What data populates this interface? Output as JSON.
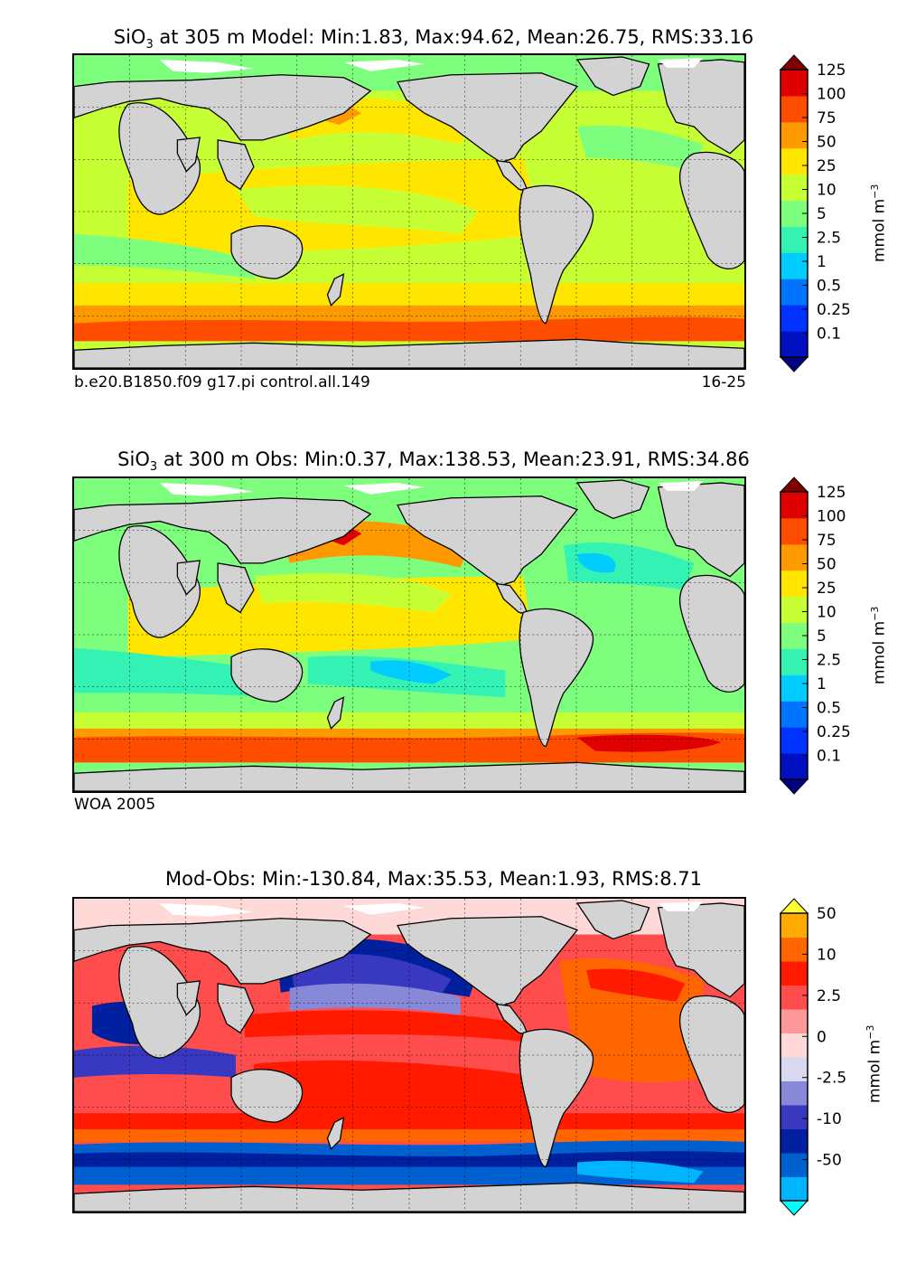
{
  "colors": {
    "land": "#d3d3d3",
    "ice": "#ffffff",
    "coast": "#000000",
    "grid": "#000000"
  },
  "chart_data": [
    {
      "type": "heatmap",
      "id": "model",
      "title_main": "SiO",
      "title_sub": "3",
      "title_rest": " at 305 m Model: Min:1.83, Max:94.62, Mean:26.75, RMS:33.16",
      "caption_left": "b.e20.B1850.f09 g17.pi control.all.149",
      "caption_right": "16-25",
      "colorbar_label": "mmol m",
      "colorbar_label_sup": "−3",
      "colorbar_ticks": [
        "0.1",
        "0.25",
        "0.5",
        "1",
        "2.5",
        "5",
        "10",
        "25",
        "50",
        "75",
        "100",
        "125"
      ],
      "colorbar_colors": [
        "#000080",
        "#0010c0",
        "#0033ff",
        "#0074ff",
        "#00ccff",
        "#33f2b3",
        "#7dff7d",
        "#c6ff33",
        "#ffe600",
        "#ff9900",
        "#ff4d00",
        "#e00000",
        "#800000"
      ],
      "extend": "both",
      "stats": {
        "depth_m": 305,
        "min": 1.83,
        "max": 94.62,
        "mean": 26.75,
        "rms": 33.16
      }
    },
    {
      "type": "heatmap",
      "id": "obs",
      "title_main": "SiO",
      "title_sub": "3",
      "title_rest": " at 300 m Obs: Min:0.37, Max:138.53, Mean:23.91, RMS:34.86",
      "caption_left": "WOA 2005",
      "caption_right": "",
      "colorbar_label": "mmol m",
      "colorbar_label_sup": "−3",
      "colorbar_ticks": [
        "0.1",
        "0.25",
        "0.5",
        "1",
        "2.5",
        "5",
        "10",
        "25",
        "50",
        "75",
        "100",
        "125"
      ],
      "colorbar_colors": [
        "#000080",
        "#0010c0",
        "#0033ff",
        "#0074ff",
        "#00ccff",
        "#33f2b3",
        "#7dff7d",
        "#c6ff33",
        "#ffe600",
        "#ff9900",
        "#ff4d00",
        "#e00000",
        "#800000"
      ],
      "extend": "both",
      "stats": {
        "depth_m": 300,
        "min": 0.37,
        "max": 138.53,
        "mean": 23.91,
        "rms": 34.86
      }
    },
    {
      "type": "heatmap",
      "id": "diff",
      "title_main": "Mod-Obs: Min:-130.84, Max:35.53, Mean:1.93, RMS:8.71",
      "title_sub": "",
      "title_rest": "",
      "caption_left": "",
      "caption_right": "",
      "colorbar_label": "mmol m",
      "colorbar_label_sup": "−3",
      "colorbar_ticks": [
        "-50",
        "-10",
        "-2.5",
        "0",
        "2.5",
        "10",
        "50"
      ],
      "colorbar_colors": [
        "#00ffff",
        "#00b4ff",
        "#0060d0",
        "#0020a0",
        "#3838c0",
        "#8888d8",
        "#d8d8f0",
        "#ffd8d8",
        "#ff9999",
        "#ff4d4d",
        "#ff1a00",
        "#ff6600",
        "#ffaa00",
        "#ffff33"
      ],
      "extend": "both",
      "stats": {
        "min": -130.84,
        "max": 35.53,
        "mean": 1.93,
        "rms": 8.71
      }
    }
  ]
}
